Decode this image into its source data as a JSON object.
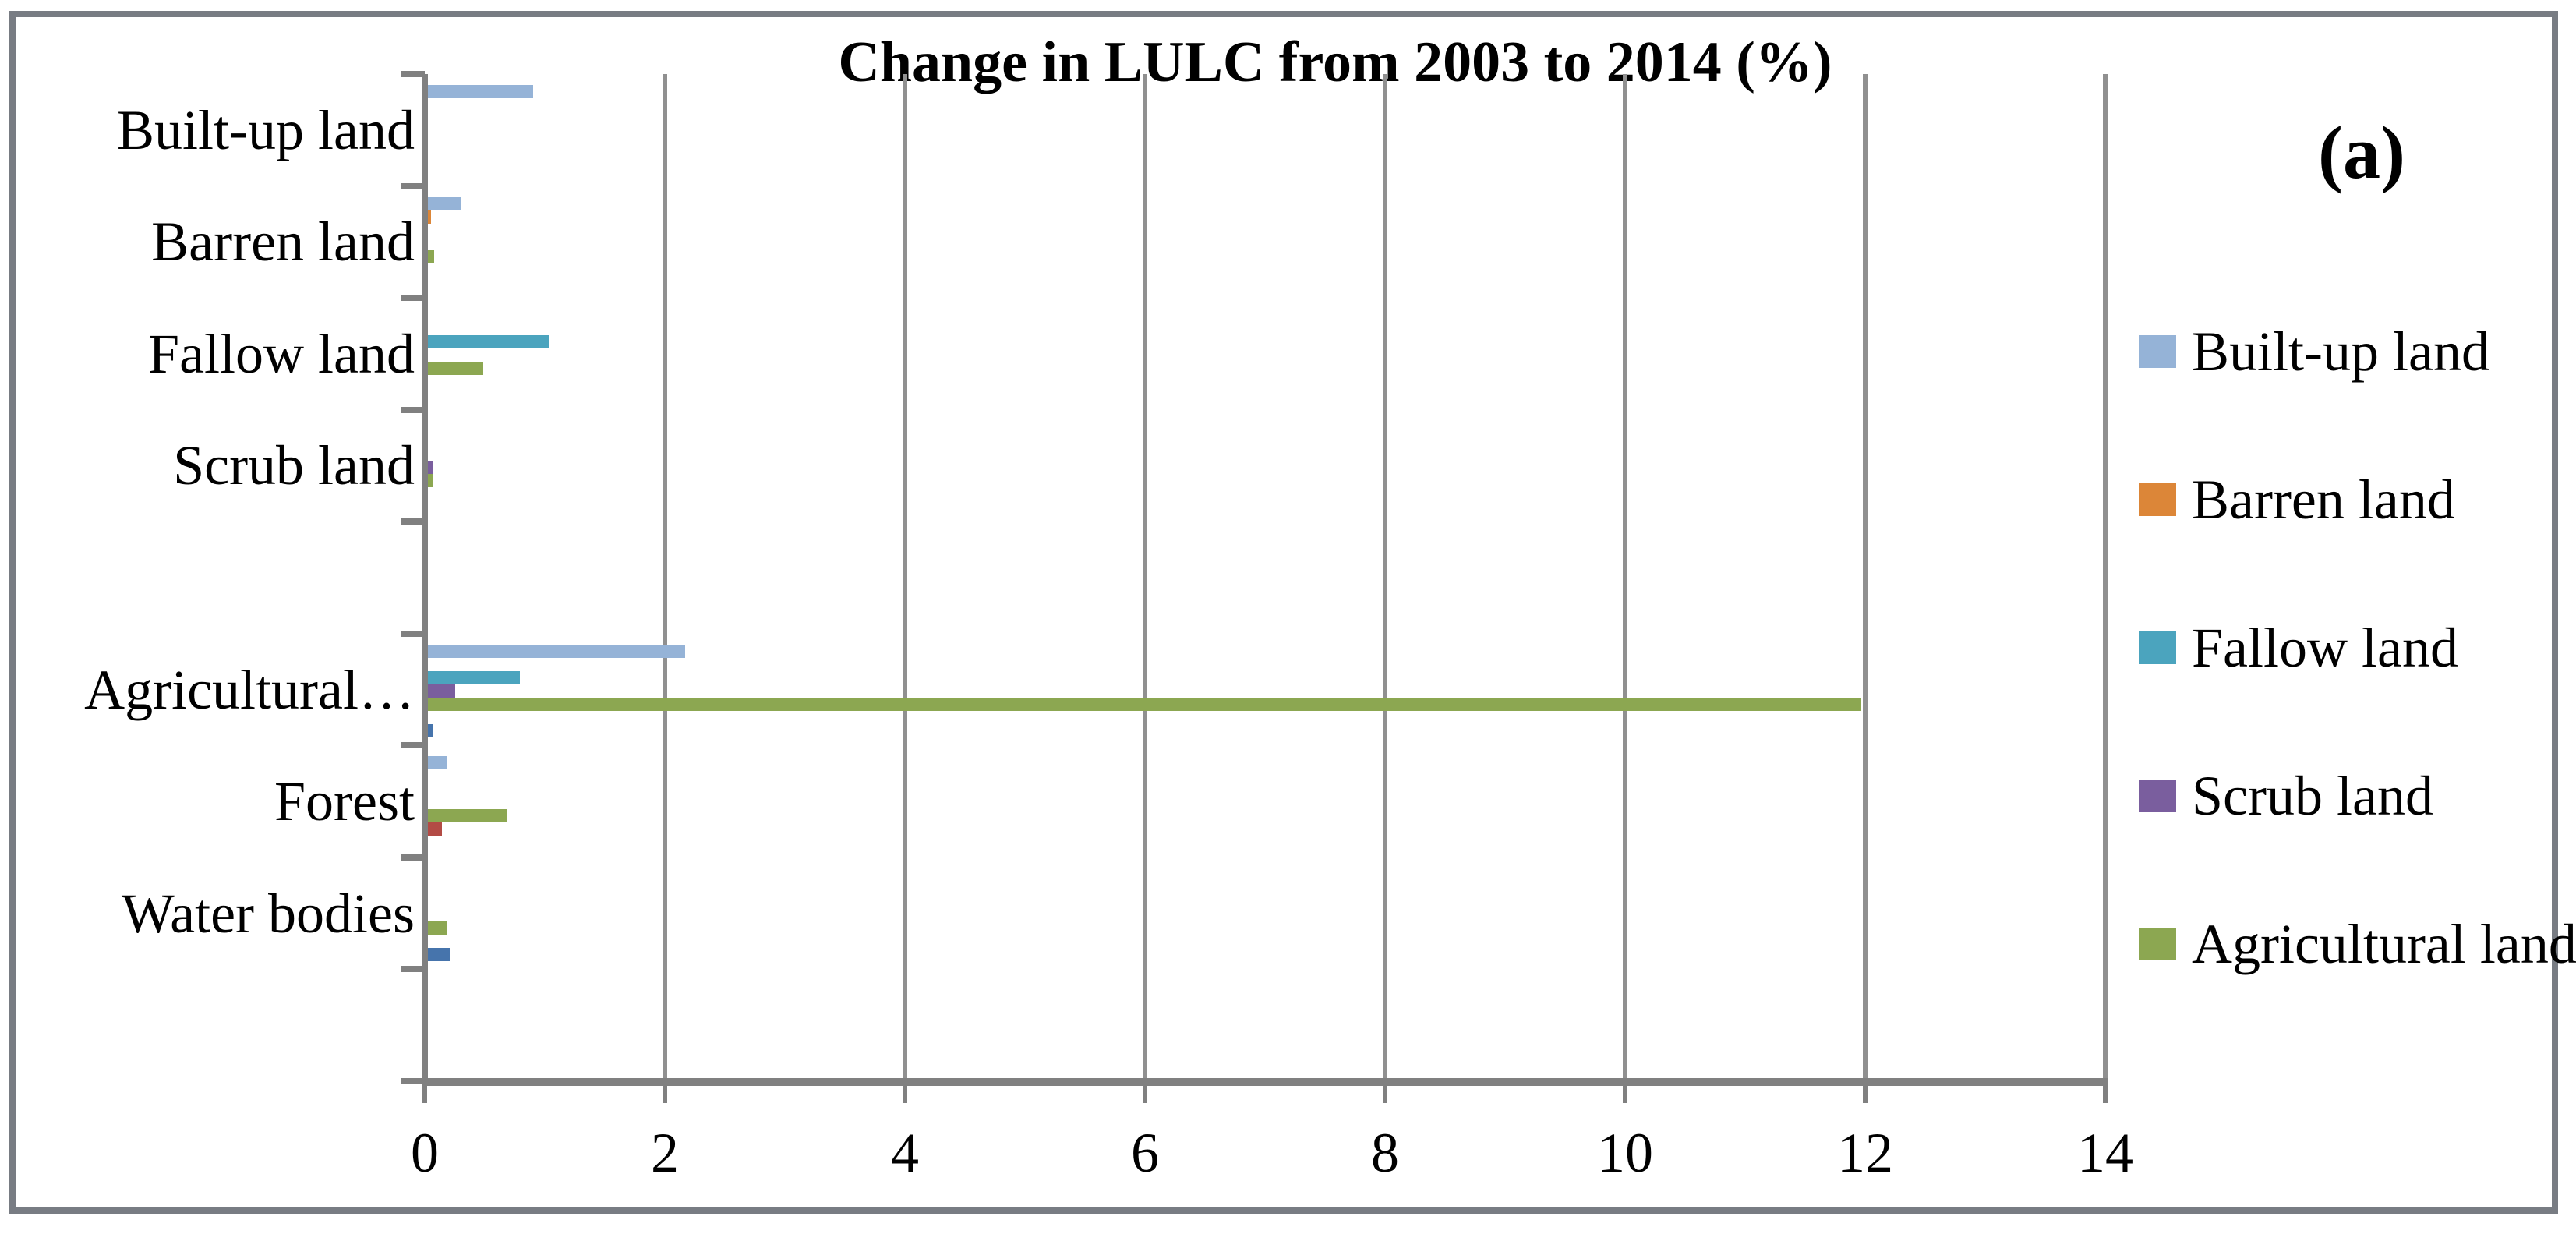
{
  "chart_data": {
    "type": "bar",
    "orientation": "horizontal",
    "title": "Change in LULC from 2003 to 2014 (%)",
    "panel_label": "(a)",
    "categories": [
      "Built-up land",
      "Barren land",
      "Fallow land",
      "Scrub land",
      "Agricultural…",
      "Forest",
      "Water bodies"
    ],
    "series": [
      {
        "name": "Built-up land",
        "color": "#95B3D7",
        "in_legend": true,
        "values": [
          0.9,
          0.3,
          0,
          0,
          2.17,
          0.19,
          0
        ]
      },
      {
        "name": "Barren land",
        "color": "#DC8638",
        "in_legend": true,
        "values": [
          0,
          0.05,
          0,
          0,
          0,
          0,
          0
        ]
      },
      {
        "name": "Fallow land",
        "color": "#4BA4BE",
        "in_legend": true,
        "values": [
          0,
          0,
          1.03,
          0,
          0.79,
          0,
          0
        ]
      },
      {
        "name": "Scrub land",
        "color": "#7A5E9E",
        "in_legend": true,
        "values": [
          0,
          0,
          0,
          0.07,
          0.25,
          0,
          0
        ]
      },
      {
        "name": "Agricultural land",
        "color": "#8CA751",
        "in_legend": true,
        "values": [
          0,
          0.08,
          0.49,
          0.07,
          11.97,
          0.69,
          0.19
        ]
      },
      {
        "name": "Forest",
        "color": "#B34B45",
        "in_legend": false,
        "values": [
          0,
          0,
          0,
          0,
          0,
          0.14,
          0
        ]
      },
      {
        "name": "Water bodies",
        "color": "#4674AC",
        "in_legend": false,
        "values": [
          0,
          0,
          0,
          0,
          0.07,
          0,
          0.21
        ]
      }
    ],
    "xlabel": "",
    "ylabel": "",
    "xlim": [
      0,
      14
    ],
    "x_ticks": [
      0,
      2,
      4,
      6,
      8,
      10,
      12,
      14
    ],
    "grid": true,
    "legend_position": "right",
    "legend_entries": [
      "Built-up land",
      "Barren land",
      "Fallow land",
      "Scrub land",
      "Agricultural land"
    ],
    "category_slots": [
      0,
      1,
      2,
      3,
      5,
      6,
      7
    ],
    "total_slots": 9
  }
}
